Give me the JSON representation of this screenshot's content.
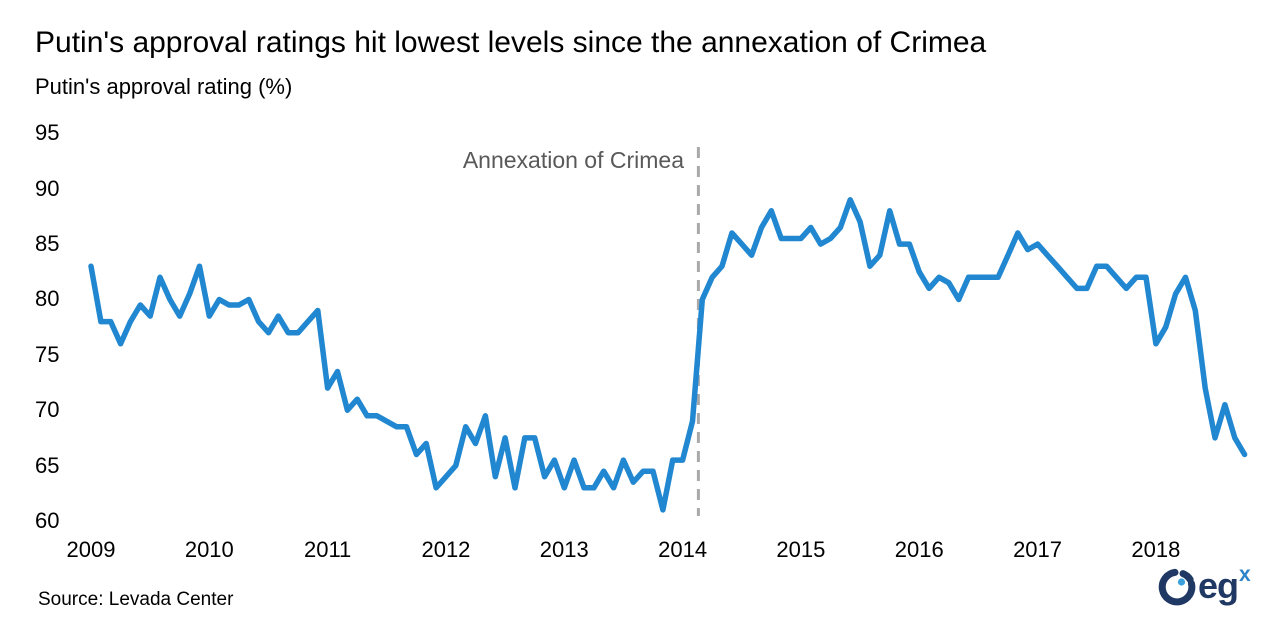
{
  "header": {
    "title": "Putin's approval ratings hit lowest levels since the annexation of Crimea",
    "subtitle": "Putin's approval rating (%)"
  },
  "footer": {
    "source": "Source: Levada Center",
    "logo_text": "eg",
    "logo_sup": "x"
  },
  "chart_data": {
    "type": "line",
    "title": "Putin's approval ratings hit lowest levels since the annexation of Crimea",
    "ylabel": "Putin's approval rating (%)",
    "x_start": "2009-01",
    "x_end": "2018-10",
    "x_frequency": "monthly",
    "x_tick_labels": [
      "2009",
      "2010",
      "2011",
      "2012",
      "2013",
      "2014",
      "2015",
      "2016",
      "2017",
      "2018"
    ],
    "y_ticks": [
      60,
      65,
      70,
      75,
      80,
      85,
      90,
      95
    ],
    "ylim": [
      60,
      95
    ],
    "grid": false,
    "legend": "none",
    "annotation": {
      "label": "Annexation of Crimea",
      "date": "2014-03"
    },
    "series": [
      {
        "name": "Putin's approval rating (%)",
        "values": [
          83,
          78,
          78,
          76,
          78,
          79.5,
          78.5,
          82,
          80,
          78.5,
          80.5,
          83,
          78.5,
          80,
          79.5,
          79.5,
          80,
          78,
          77,
          78.5,
          77,
          77,
          78,
          79,
          72,
          73.5,
          70,
          71,
          69.5,
          69.5,
          69,
          68.5,
          68.5,
          66,
          67,
          63,
          64,
          65,
          68.5,
          67,
          69.5,
          64,
          67.5,
          63,
          67.5,
          67.5,
          64,
          65.5,
          63,
          65.5,
          63,
          63,
          64.5,
          63,
          65.5,
          63.5,
          64.5,
          64.5,
          61,
          65.5,
          65.5,
          69,
          80,
          82,
          83,
          86,
          85,
          84,
          86.5,
          88,
          85.5,
          85.5,
          85.5,
          86.5,
          85,
          85.5,
          86.5,
          89,
          87,
          83,
          84,
          88,
          85,
          85,
          82.5,
          81,
          82,
          81.5,
          80,
          82,
          82,
          82,
          82,
          84,
          86,
          84.5,
          85,
          84,
          83,
          82,
          81,
          81,
          83,
          83,
          82,
          81,
          82,
          82,
          76,
          77.5,
          80.5,
          82,
          79,
          72,
          67.5,
          70.5,
          67.5,
          66
        ]
      }
    ],
    "colors": {
      "line": "#2187d0",
      "dashed_rule": "#a9a9a9",
      "annotation_text": "#595959",
      "logo_navy": "#203864",
      "logo_blue": "#2e83c9",
      "logo_dot": "#3aa0dc"
    }
  }
}
